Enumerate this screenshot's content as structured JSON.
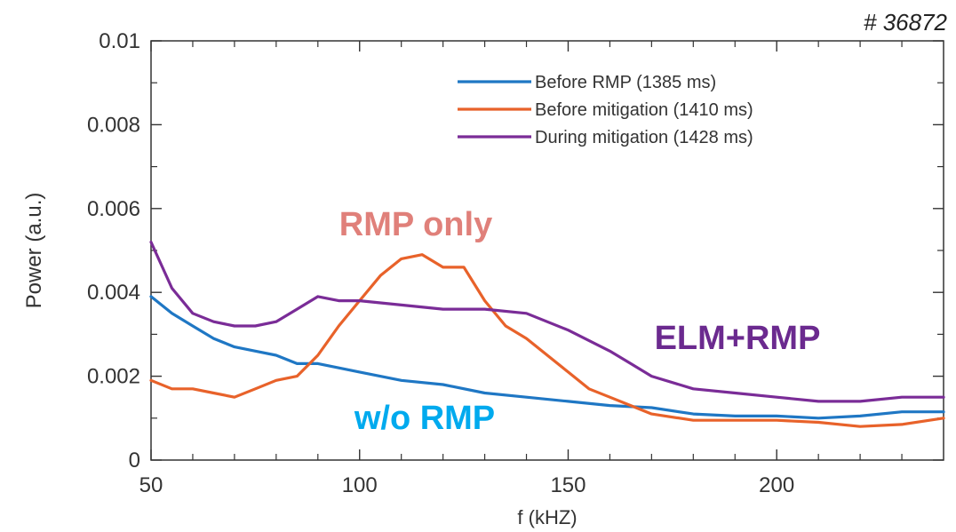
{
  "clipped_text": {
    "top": "",
    "bottom": ""
  },
  "chart_data": {
    "type": "line",
    "shot_label": "# 36872",
    "xlabel": "f (kHZ)",
    "ylabel": "Power (a.u.)",
    "xlim": [
      50,
      240
    ],
    "ylim": [
      0,
      0.01
    ],
    "x_ticks": [
      50,
      100,
      150,
      200
    ],
    "x_tick_labels": [
      "50",
      "100",
      "150",
      "200"
    ],
    "y_ticks": [
      0,
      0.002,
      0.004,
      0.006,
      0.008,
      0.01
    ],
    "y_tick_labels": [
      "0",
      "0.002",
      "0.004",
      "0.006",
      "0.008",
      "0.01"
    ],
    "legend_position": "top-right",
    "series": [
      {
        "name": "Before RMP (1385 ms)",
        "color": "#1f77c4",
        "x": [
          50,
          55,
          60,
          65,
          70,
          75,
          80,
          85,
          90,
          95,
          100,
          110,
          120,
          130,
          140,
          150,
          160,
          170,
          180,
          190,
          200,
          210,
          220,
          230,
          240
        ],
        "y": [
          0.0039,
          0.0035,
          0.0032,
          0.0029,
          0.0027,
          0.0026,
          0.0025,
          0.0023,
          0.0023,
          0.0022,
          0.0021,
          0.0019,
          0.0018,
          0.0016,
          0.0015,
          0.0014,
          0.0013,
          0.00125,
          0.0011,
          0.00105,
          0.00105,
          0.001,
          0.00105,
          0.00115,
          0.00115
        ]
      },
      {
        "name": "Before mitigation (1410 ms)",
        "color": "#e8622a",
        "x": [
          50,
          55,
          60,
          65,
          70,
          75,
          80,
          85,
          90,
          95,
          100,
          105,
          110,
          115,
          120,
          125,
          130,
          135,
          140,
          145,
          150,
          155,
          160,
          165,
          170,
          180,
          190,
          200,
          210,
          220,
          230,
          240
        ],
        "y": [
          0.0019,
          0.0017,
          0.0017,
          0.0016,
          0.0015,
          0.0017,
          0.0019,
          0.002,
          0.0025,
          0.0032,
          0.0038,
          0.0044,
          0.0048,
          0.0049,
          0.0046,
          0.0046,
          0.0038,
          0.0032,
          0.0029,
          0.0025,
          0.0021,
          0.0017,
          0.0015,
          0.0013,
          0.0011,
          0.00095,
          0.00095,
          0.00095,
          0.0009,
          0.0008,
          0.00085,
          0.001
        ]
      },
      {
        "name": "During mitigation (1428 ms)",
        "color": "#7a2c97",
        "x": [
          50,
          55,
          60,
          65,
          70,
          75,
          80,
          85,
          90,
          95,
          100,
          110,
          120,
          130,
          140,
          150,
          160,
          165,
          170,
          180,
          190,
          200,
          210,
          220,
          230,
          240
        ],
        "y": [
          0.0052,
          0.0041,
          0.0035,
          0.0033,
          0.0032,
          0.0032,
          0.0033,
          0.0036,
          0.0039,
          0.0038,
          0.0038,
          0.0037,
          0.0036,
          0.0036,
          0.0035,
          0.0031,
          0.0026,
          0.0023,
          0.002,
          0.0017,
          0.0016,
          0.0015,
          0.0014,
          0.0014,
          0.0015,
          0.0015
        ]
      }
    ],
    "annotations": [
      {
        "text": "RMP only",
        "color": "#e0807a"
      },
      {
        "text": "ELM+RMP",
        "color": "#6b2a8f"
      },
      {
        "text": "w/o RMP",
        "color": "#00aaee"
      }
    ]
  }
}
